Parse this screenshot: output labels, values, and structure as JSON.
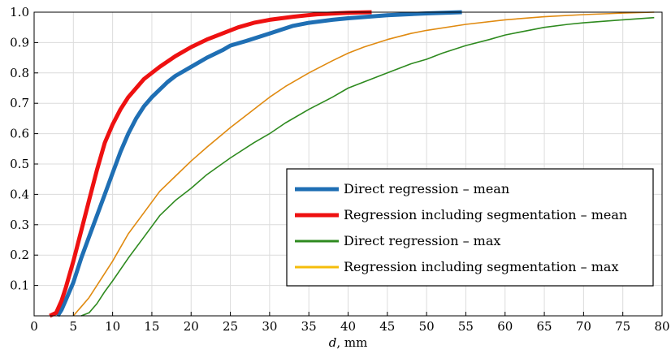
{
  "chart_data": {
    "type": "line",
    "title": "",
    "xlabel_var": "d",
    "xlabel_unit": ", mm",
    "ylabel": "",
    "xlim": [
      0,
      80
    ],
    "ylim": [
      0,
      1.0
    ],
    "grid": true,
    "legend_position": "lower-right",
    "x_ticks": [
      "0",
      "5",
      "10",
      "15",
      "20",
      "25",
      "30",
      "35",
      "40",
      "45",
      "50",
      "55",
      "60",
      "65",
      "70",
      "75",
      "80"
    ],
    "y_ticks": [
      "0.1",
      "0.2",
      "0.3",
      "0.4",
      "0.5",
      "0.6",
      "0.7",
      "0.8",
      "0.9",
      "1.0"
    ],
    "series": [
      {
        "name": "Direct regression – mean",
        "color": "#1f6fb4",
        "weight": "thick",
        "points": [
          [
            3.0,
            0.0
          ],
          [
            3.5,
            0.02
          ],
          [
            4.0,
            0.05
          ],
          [
            5,
            0.11
          ],
          [
            6,
            0.19
          ],
          [
            7,
            0.26
          ],
          [
            8,
            0.33
          ],
          [
            9,
            0.4
          ],
          [
            10,
            0.47
          ],
          [
            11,
            0.54
          ],
          [
            12,
            0.6
          ],
          [
            13,
            0.65
          ],
          [
            14,
            0.69
          ],
          [
            15,
            0.72
          ],
          [
            17,
            0.77
          ],
          [
            18,
            0.79
          ],
          [
            20,
            0.82
          ],
          [
            22,
            0.85
          ],
          [
            24,
            0.875
          ],
          [
            25,
            0.89
          ],
          [
            27,
            0.905
          ],
          [
            30,
            0.93
          ],
          [
            33,
            0.955
          ],
          [
            35,
            0.965
          ],
          [
            38,
            0.975
          ],
          [
            40,
            0.98
          ],
          [
            45,
            0.99
          ],
          [
            50,
            0.996
          ],
          [
            54.5,
            1.0
          ]
        ]
      },
      {
        "name": "Regression including segmentation – mean",
        "color": "#ee1111",
        "weight": "thick",
        "points": [
          [
            2.0,
            0.0
          ],
          [
            2.8,
            0.01
          ],
          [
            3.5,
            0.05
          ],
          [
            4,
            0.09
          ],
          [
            5,
            0.18
          ],
          [
            6,
            0.28
          ],
          [
            7,
            0.38
          ],
          [
            8,
            0.48
          ],
          [
            9,
            0.57
          ],
          [
            10,
            0.63
          ],
          [
            11,
            0.68
          ],
          [
            12,
            0.72
          ],
          [
            13,
            0.75
          ],
          [
            14,
            0.78
          ],
          [
            15,
            0.8
          ],
          [
            16,
            0.82
          ],
          [
            18,
            0.855
          ],
          [
            20,
            0.885
          ],
          [
            22,
            0.91
          ],
          [
            24,
            0.93
          ],
          [
            26,
            0.95
          ],
          [
            28,
            0.965
          ],
          [
            30,
            0.975
          ],
          [
            33,
            0.985
          ],
          [
            36,
            0.993
          ],
          [
            40,
            0.998
          ],
          [
            43,
            1.0
          ]
        ]
      },
      {
        "name": "Direct regression – max",
        "color": "#2e8a1f",
        "weight": "thin",
        "points": [
          [
            6.0,
            0.0
          ],
          [
            7,
            0.01
          ],
          [
            8,
            0.04
          ],
          [
            9,
            0.08
          ],
          [
            10,
            0.115
          ],
          [
            12,
            0.19
          ],
          [
            14,
            0.26
          ],
          [
            16,
            0.33
          ],
          [
            18,
            0.38
          ],
          [
            20,
            0.42
          ],
          [
            22,
            0.465
          ],
          [
            25,
            0.52
          ],
          [
            28,
            0.57
          ],
          [
            30,
            0.6
          ],
          [
            32,
            0.635
          ],
          [
            35,
            0.68
          ],
          [
            38,
            0.72
          ],
          [
            40,
            0.75
          ],
          [
            42,
            0.77
          ],
          [
            45,
            0.8
          ],
          [
            48,
            0.83
          ],
          [
            50,
            0.845
          ],
          [
            52,
            0.865
          ],
          [
            55,
            0.89
          ],
          [
            58,
            0.91
          ],
          [
            60,
            0.925
          ],
          [
            62,
            0.935
          ],
          [
            65,
            0.95
          ],
          [
            68,
            0.96
          ],
          [
            70,
            0.965
          ],
          [
            75,
            0.975
          ],
          [
            79,
            0.982
          ]
        ]
      },
      {
        "name": "Regression including segmentation – max",
        "color": "#e08a10",
        "legend_color": "#f5bd0a",
        "weight": "thin",
        "points": [
          [
            5.0,
            0.0
          ],
          [
            6,
            0.03
          ],
          [
            7,
            0.06
          ],
          [
            8,
            0.1
          ],
          [
            9,
            0.14
          ],
          [
            10,
            0.18
          ],
          [
            12,
            0.27
          ],
          [
            14,
            0.34
          ],
          [
            16,
            0.41
          ],
          [
            18,
            0.46
          ],
          [
            20,
            0.51
          ],
          [
            22,
            0.555
          ],
          [
            25,
            0.62
          ],
          [
            28,
            0.68
          ],
          [
            30,
            0.72
          ],
          [
            32,
            0.755
          ],
          [
            35,
            0.8
          ],
          [
            38,
            0.84
          ],
          [
            40,
            0.865
          ],
          [
            42,
            0.885
          ],
          [
            45,
            0.91
          ],
          [
            48,
            0.93
          ],
          [
            50,
            0.94
          ],
          [
            55,
            0.96
          ],
          [
            60,
            0.975
          ],
          [
            65,
            0.985
          ],
          [
            70,
            0.992
          ],
          [
            75,
            0.997
          ],
          [
            79,
            1.0
          ]
        ]
      }
    ]
  }
}
